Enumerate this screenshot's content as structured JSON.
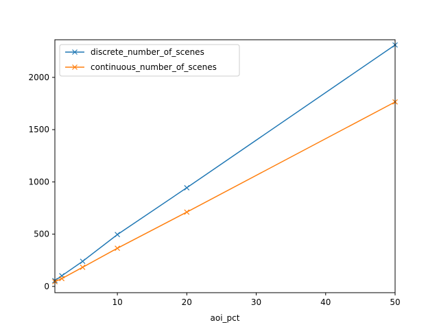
{
  "chart_data": {
    "type": "line",
    "title": "",
    "xlabel": "aoi_pct",
    "ylabel": "",
    "xlim": [
      1,
      50
    ],
    "ylim": [
      -60,
      2360
    ],
    "xticks": [
      10,
      20,
      30,
      40,
      50
    ],
    "yticks": [
      0,
      500,
      1000,
      1500,
      2000
    ],
    "xtick_labels": [
      "10",
      "20",
      "30",
      "40",
      "50"
    ],
    "ytick_labels": [
      "0",
      "500",
      "1000",
      "1500",
      "2000"
    ],
    "grid": false,
    "legend": "top-left",
    "marker": "x",
    "series": [
      {
        "name": "discrete_number_of_scenes",
        "color": "#1f77b4",
        "x": [
          1,
          2,
          5,
          10,
          20,
          50
        ],
        "y": [
          55,
          102,
          240,
          496,
          944,
          2310
        ]
      },
      {
        "name": "continuous_number_of_scenes",
        "color": "#ff7f0e",
        "x": [
          1,
          2,
          5,
          10,
          20,
          50
        ],
        "y": [
          45,
          75,
          183,
          365,
          711,
          1765
        ]
      }
    ]
  }
}
